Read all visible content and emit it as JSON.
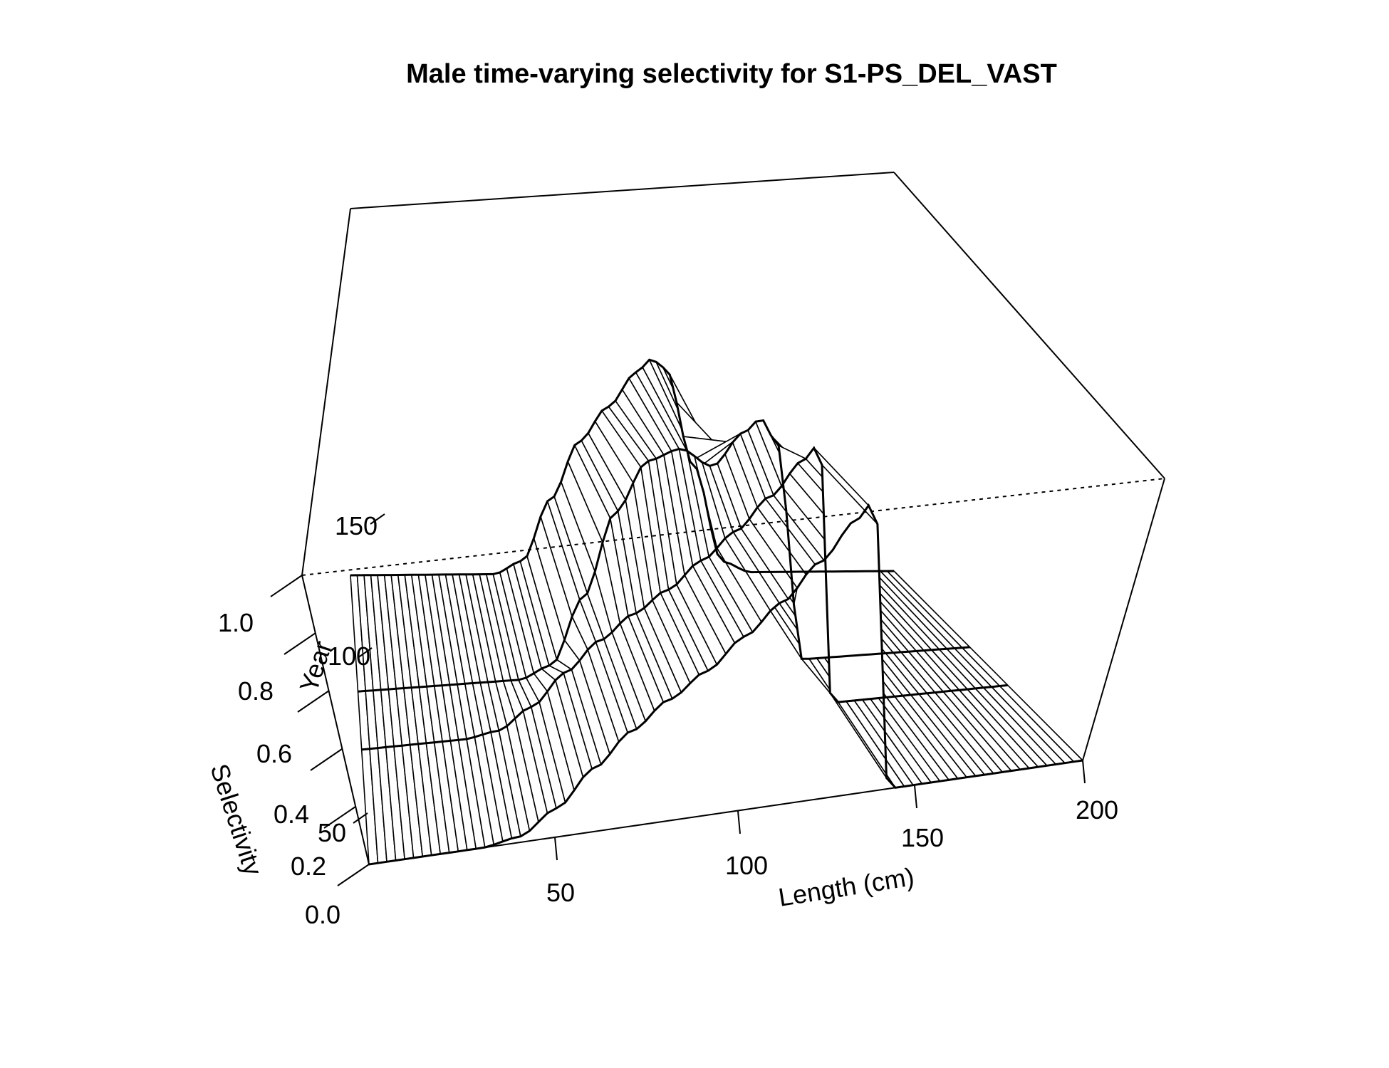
{
  "chart_data": {
    "type": "surface",
    "title": "Male time-varying selectivity for S1-PS_DEL_VAST",
    "xlabel": "Length (cm)",
    "ylabel": "Year",
    "zlabel": "Selectivity",
    "x_ticks": [
      "50",
      "100",
      "150",
      "200"
    ],
    "y_ticks": [
      "50",
      "100",
      "150"
    ],
    "z_ticks": [
      "0.0",
      "0.2",
      "0.4",
      "0.6",
      "0.8",
      "1.0"
    ],
    "xlim": [
      10,
      200
    ],
    "ylim": [
      1,
      200
    ],
    "zlim": [
      0,
      1
    ],
    "year_blocks": [
      {
        "years": [
          1,
          80
        ],
        "selectivity_profile": [
          {
            "length": 10,
            "value": 0.0
          },
          {
            "length": 40,
            "value": 0.0
          },
          {
            "length": 50,
            "value": 0.02
          },
          {
            "length": 60,
            "value": 0.1
          },
          {
            "length": 70,
            "value": 0.22
          },
          {
            "length": 80,
            "value": 0.33
          },
          {
            "length": 90,
            "value": 0.42
          },
          {
            "length": 100,
            "value": 0.5
          },
          {
            "length": 110,
            "value": 0.6
          },
          {
            "length": 120,
            "value": 0.7
          },
          {
            "length": 130,
            "value": 0.82
          },
          {
            "length": 140,
            "value": 0.95
          },
          {
            "length": 144,
            "value": 1.0
          },
          {
            "length": 146,
            "value": 0.9
          },
          {
            "length": 148,
            "value": 0.0
          },
          {
            "length": 200,
            "value": 0.0
          }
        ]
      },
      {
        "years": [
          81,
          120
        ],
        "selectivity_profile": [
          {
            "length": 10,
            "value": 0.0
          },
          {
            "length": 60,
            "value": 0.0
          },
          {
            "length": 70,
            "value": 0.05
          },
          {
            "length": 80,
            "value": 0.32
          },
          {
            "length": 90,
            "value": 0.66
          },
          {
            "length": 100,
            "value": 0.86
          },
          {
            "length": 110,
            "value": 0.9
          },
          {
            "length": 120,
            "value": 0.82
          },
          {
            "length": 130,
            "value": 0.95
          },
          {
            "length": 135,
            "value": 1.0
          },
          {
            "length": 140,
            "value": 0.9
          },
          {
            "length": 148,
            "value": 0.0
          },
          {
            "length": 200,
            "value": 0.0
          }
        ]
      },
      {
        "years": [
          121,
          200
        ],
        "selectivity_profile": [
          {
            "length": 10,
            "value": 0.0
          },
          {
            "length": 60,
            "value": 0.0
          },
          {
            "length": 70,
            "value": 0.06
          },
          {
            "length": 80,
            "value": 0.35
          },
          {
            "length": 90,
            "value": 0.62
          },
          {
            "length": 100,
            "value": 0.78
          },
          {
            "length": 110,
            "value": 0.94
          },
          {
            "length": 115,
            "value": 1.0
          },
          {
            "length": 120,
            "value": 0.96
          },
          {
            "length": 130,
            "value": 0.5
          },
          {
            "length": 140,
            "value": 0.05
          },
          {
            "length": 150,
            "value": 0.0
          },
          {
            "length": 200,
            "value": 0.0
          }
        ]
      }
    ]
  }
}
